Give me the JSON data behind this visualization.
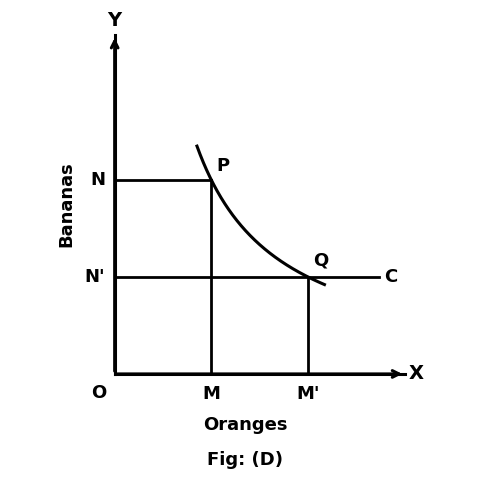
{
  "title": "Fig: (D)",
  "xlabel": "Oranges",
  "ylabel": "Bananas",
  "axis_label_x": "X",
  "axis_label_y": "Y",
  "axis_origin_label": "O",
  "point_M_x": 3.0,
  "point_M_prime_x": 6.0,
  "point_N_y": 6.0,
  "point_N_prime_y": 3.0,
  "curve_k": 18.0,
  "curve_x_min": 2.55,
  "curve_x_max": 6.5,
  "C_line_x_end": 8.2,
  "xlim": [
    0,
    9.0
  ],
  "ylim": [
    0,
    10.5
  ],
  "label_P": "P",
  "label_Q": "Q",
  "label_N": "N",
  "label_N_prime": "N'",
  "label_M": "M",
  "label_M_prime": "M'",
  "label_C": "C",
  "background_color": "#ffffff",
  "line_color": "#000000",
  "curve_color": "#000000",
  "fontsize_labels": 13,
  "fontsize_axis_letters": 14,
  "fontsize_title": 13,
  "fontsize_xlabel": 13,
  "lw_axes": 2.2,
  "lw_curve": 2.2,
  "lw_lines": 2.0
}
